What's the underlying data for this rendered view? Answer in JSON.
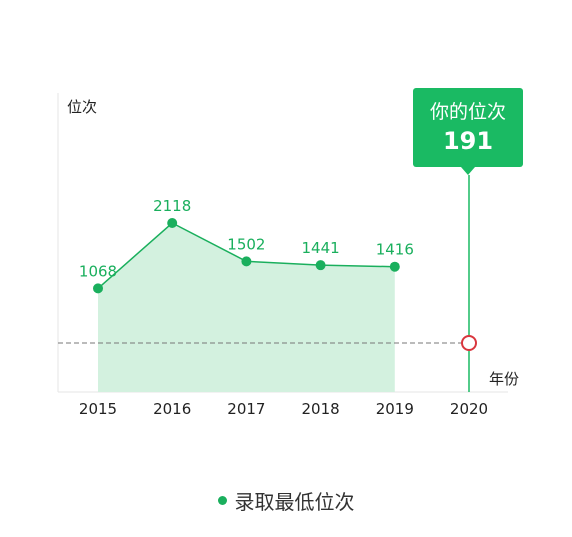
{
  "chart_data": {
    "type": "area",
    "title": "",
    "ylabel": "位次",
    "xlabel": "年份",
    "categories": [
      "2015",
      "2016",
      "2017",
      "2018",
      "2019",
      "2020"
    ],
    "series": [
      {
        "name": "录取最低位次",
        "values": [
          1068,
          2118,
          1502,
          1441,
          1416,
          null
        ]
      }
    ],
    "data_labels": [
      "1068",
      "2118",
      "1502",
      "1441",
      "1416"
    ],
    "user_rank": {
      "year": "2020",
      "value": 191,
      "label": "你的位次",
      "value_text": "191"
    },
    "reverse_y": true,
    "ylim": [
      2600,
      0
    ],
    "grid": false,
    "legend_position": "bottom-center",
    "colors": {
      "line": "#1aaf5d",
      "fill": "#d3f1df",
      "callout": "#1aba63",
      "marker_ring": "#d9363e",
      "reference_line": "#777777",
      "axis": "#e6e6e6"
    }
  },
  "legend": {
    "label": "录取最低位次"
  }
}
